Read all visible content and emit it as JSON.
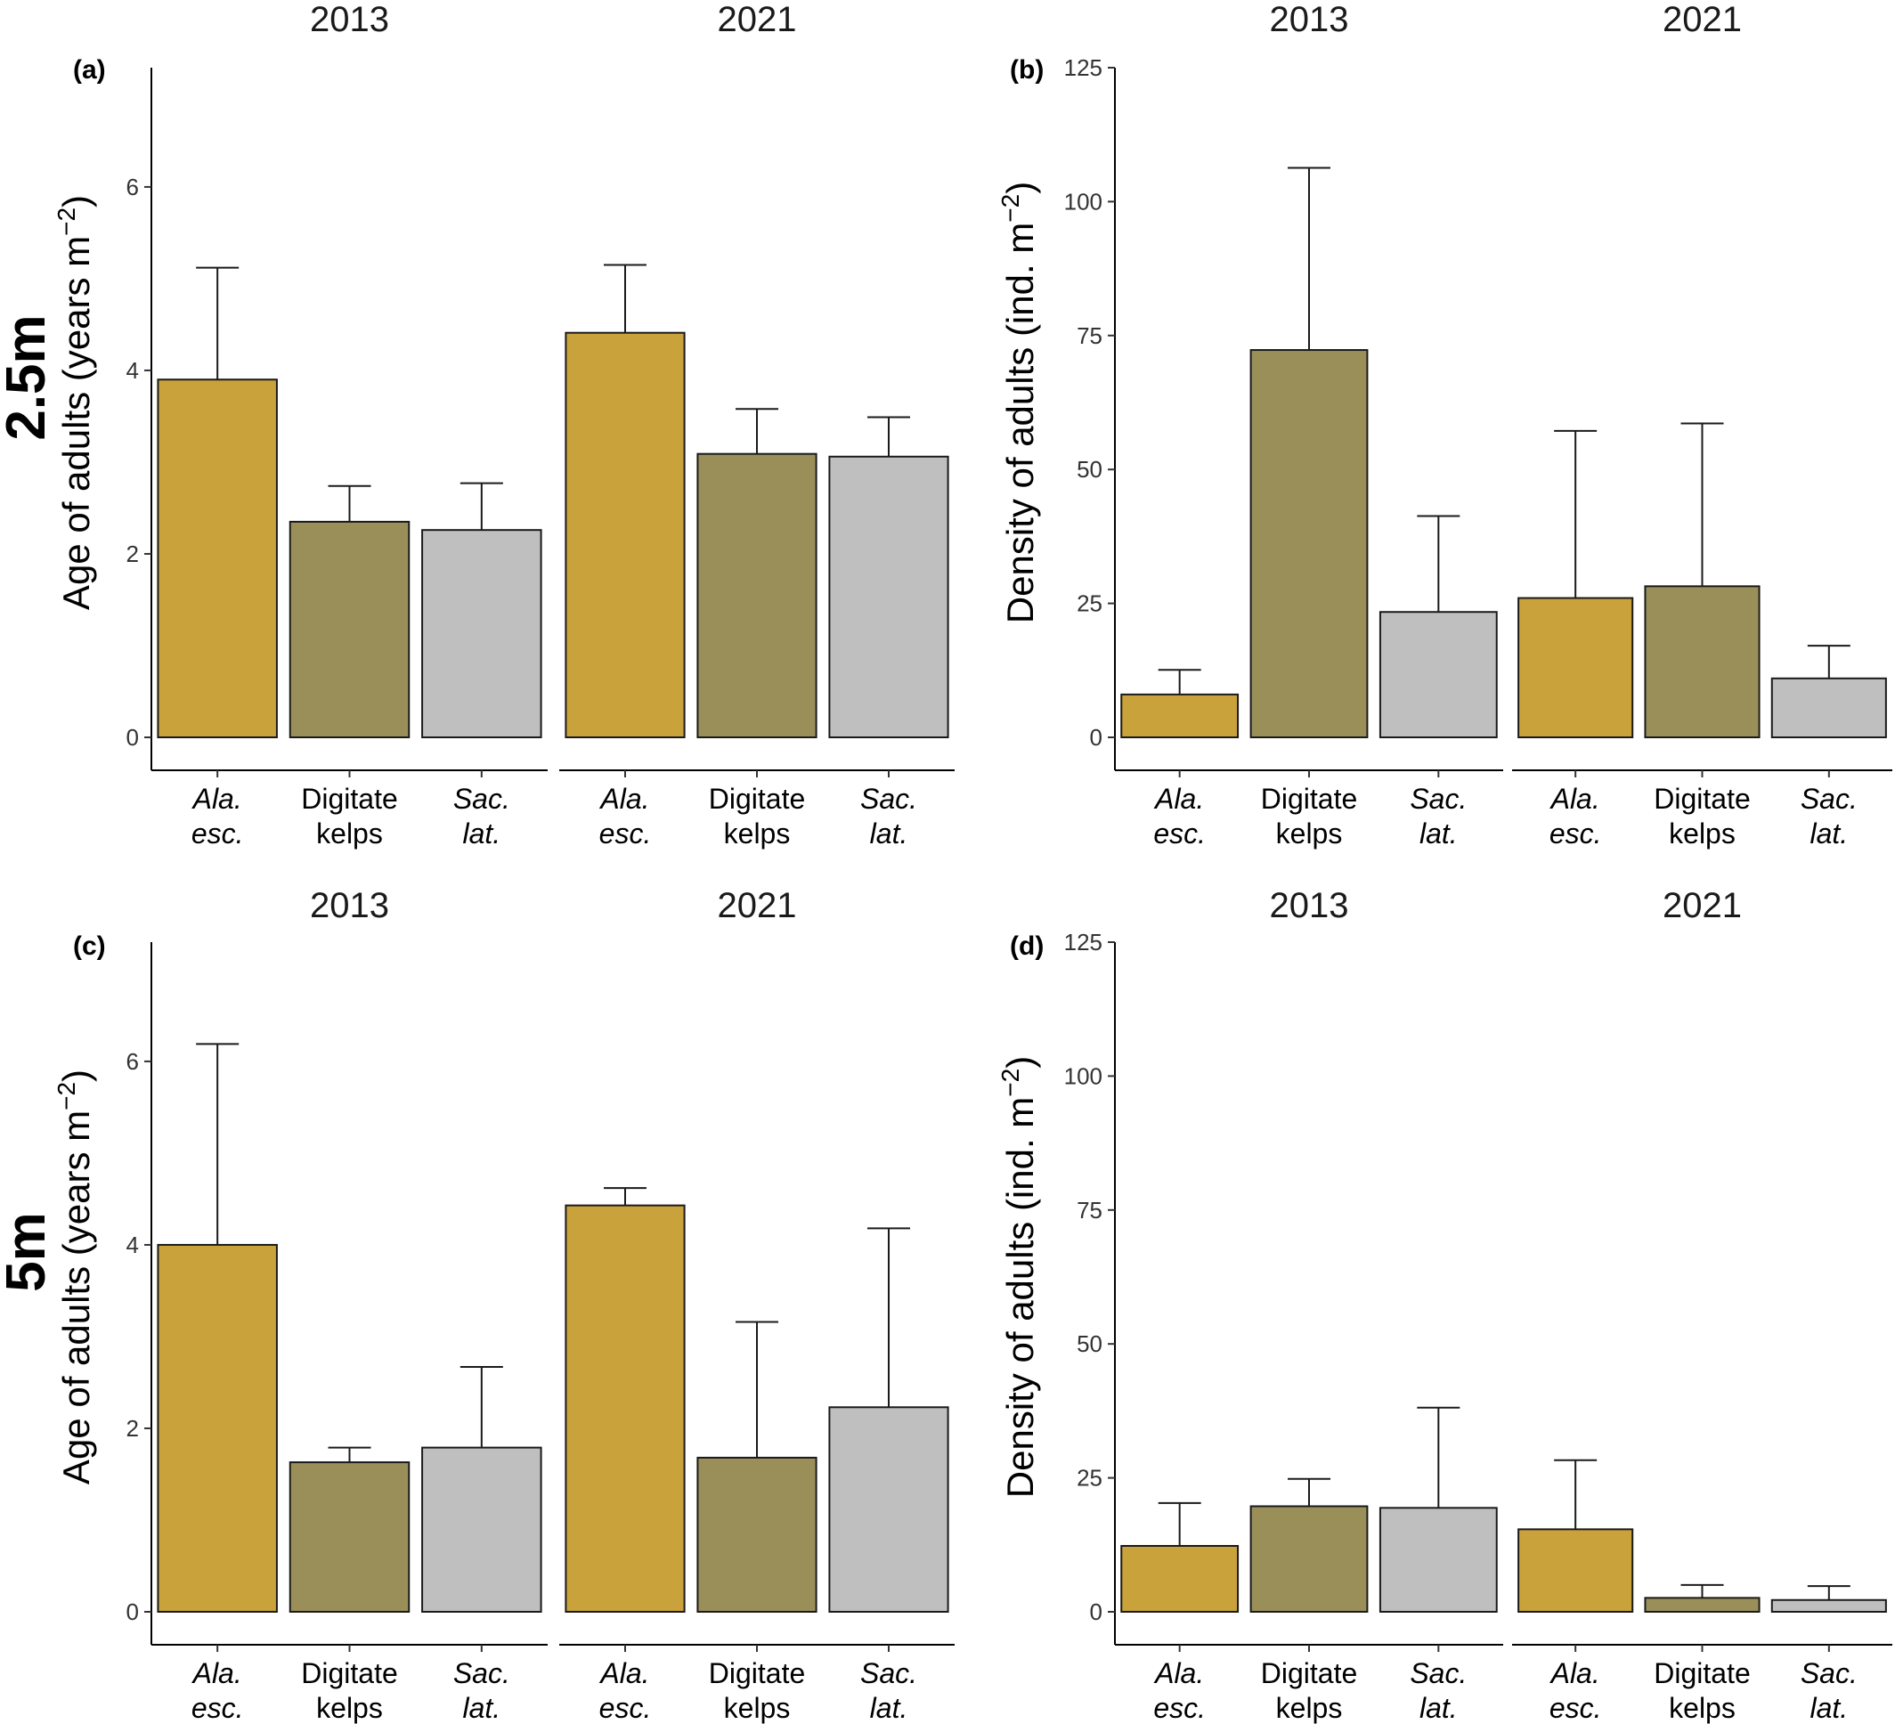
{
  "figure": {
    "row_labels": [
      "2.5m",
      "5m"
    ]
  },
  "categories": [
    {
      "parts": [
        "Ala.",
        "esc."
      ],
      "italic": true,
      "color": "#C9A23C"
    },
    {
      "parts": [
        "Digitate",
        "kelps"
      ],
      "italic": false,
      "color": "#9A8F59"
    },
    {
      "parts": [
        "Sac.",
        "lat."
      ],
      "italic": true,
      "color": "#BFBFBF"
    }
  ],
  "chart_data": [
    {
      "panel": "(a)",
      "type": "bar",
      "row": 0,
      "col": 0,
      "ylabel": "Age of adults (years m−2)",
      "ylabel_main": "Age of adults (years m",
      "ylabel_sup": "−2",
      "ylabel_end": ")",
      "ylim": [
        0,
        7.3
      ],
      "yticks": [
        0,
        2,
        4,
        6
      ],
      "facets": [
        {
          "title": "2013",
          "values": [
            3.9,
            2.35,
            2.26
          ],
          "upper": [
            5.12,
            2.74,
            2.77
          ]
        },
        {
          "title": "2021",
          "values": [
            4.41,
            3.09,
            3.06
          ],
          "upper": [
            5.15,
            3.58,
            3.49
          ]
        }
      ]
    },
    {
      "panel": "(b)",
      "type": "bar",
      "row": 0,
      "col": 1,
      "ylabel": "Density of adults (ind. m−2)",
      "ylabel_main": "Density of adults (ind. m",
      "ylabel_sup": "−2",
      "ylabel_end": ")",
      "ylim": [
        0,
        125
      ],
      "yticks": [
        0,
        25,
        50,
        75,
        100,
        125
      ],
      "facets": [
        {
          "title": "2013",
          "values": [
            8,
            72.3,
            23.4
          ],
          "upper": [
            12.6,
            106.3,
            41.3
          ]
        },
        {
          "title": "2021",
          "values": [
            26,
            28.2,
            11
          ],
          "upper": [
            57.2,
            58.6,
            17.1
          ]
        }
      ]
    },
    {
      "panel": "(c)",
      "type": "bar",
      "row": 1,
      "col": 0,
      "ylabel": "Age of adults (years m−2)",
      "ylabel_main": "Age of adults (years m",
      "ylabel_sup": "−2",
      "ylabel_end": ")",
      "ylim": [
        0,
        7.3
      ],
      "yticks": [
        0,
        2,
        4,
        6
      ],
      "facets": [
        {
          "title": "2013",
          "values": [
            4.0,
            1.63,
            1.79
          ],
          "upper": [
            6.19,
            1.79,
            2.67
          ]
        },
        {
          "title": "2021",
          "values": [
            4.43,
            1.68,
            2.23
          ],
          "upper": [
            4.62,
            3.16,
            4.18
          ]
        }
      ]
    },
    {
      "panel": "(d)",
      "type": "bar",
      "row": 1,
      "col": 1,
      "ylabel": "Density of adults (ind. m−2)",
      "ylabel_main": "Density of adults (ind. m",
      "ylabel_sup": "−2",
      "ylabel_end": ")",
      "ylim": [
        0,
        125
      ],
      "yticks": [
        0,
        25,
        50,
        75,
        100,
        125
      ],
      "facets": [
        {
          "title": "2013",
          "values": [
            12.3,
            19.7,
            19.4
          ],
          "upper": [
            20.3,
            24.8,
            38.1
          ]
        },
        {
          "title": "2021",
          "values": [
            15.4,
            2.6,
            2.2
          ],
          "upper": [
            28.3,
            5.0,
            4.8
          ]
        }
      ]
    }
  ]
}
